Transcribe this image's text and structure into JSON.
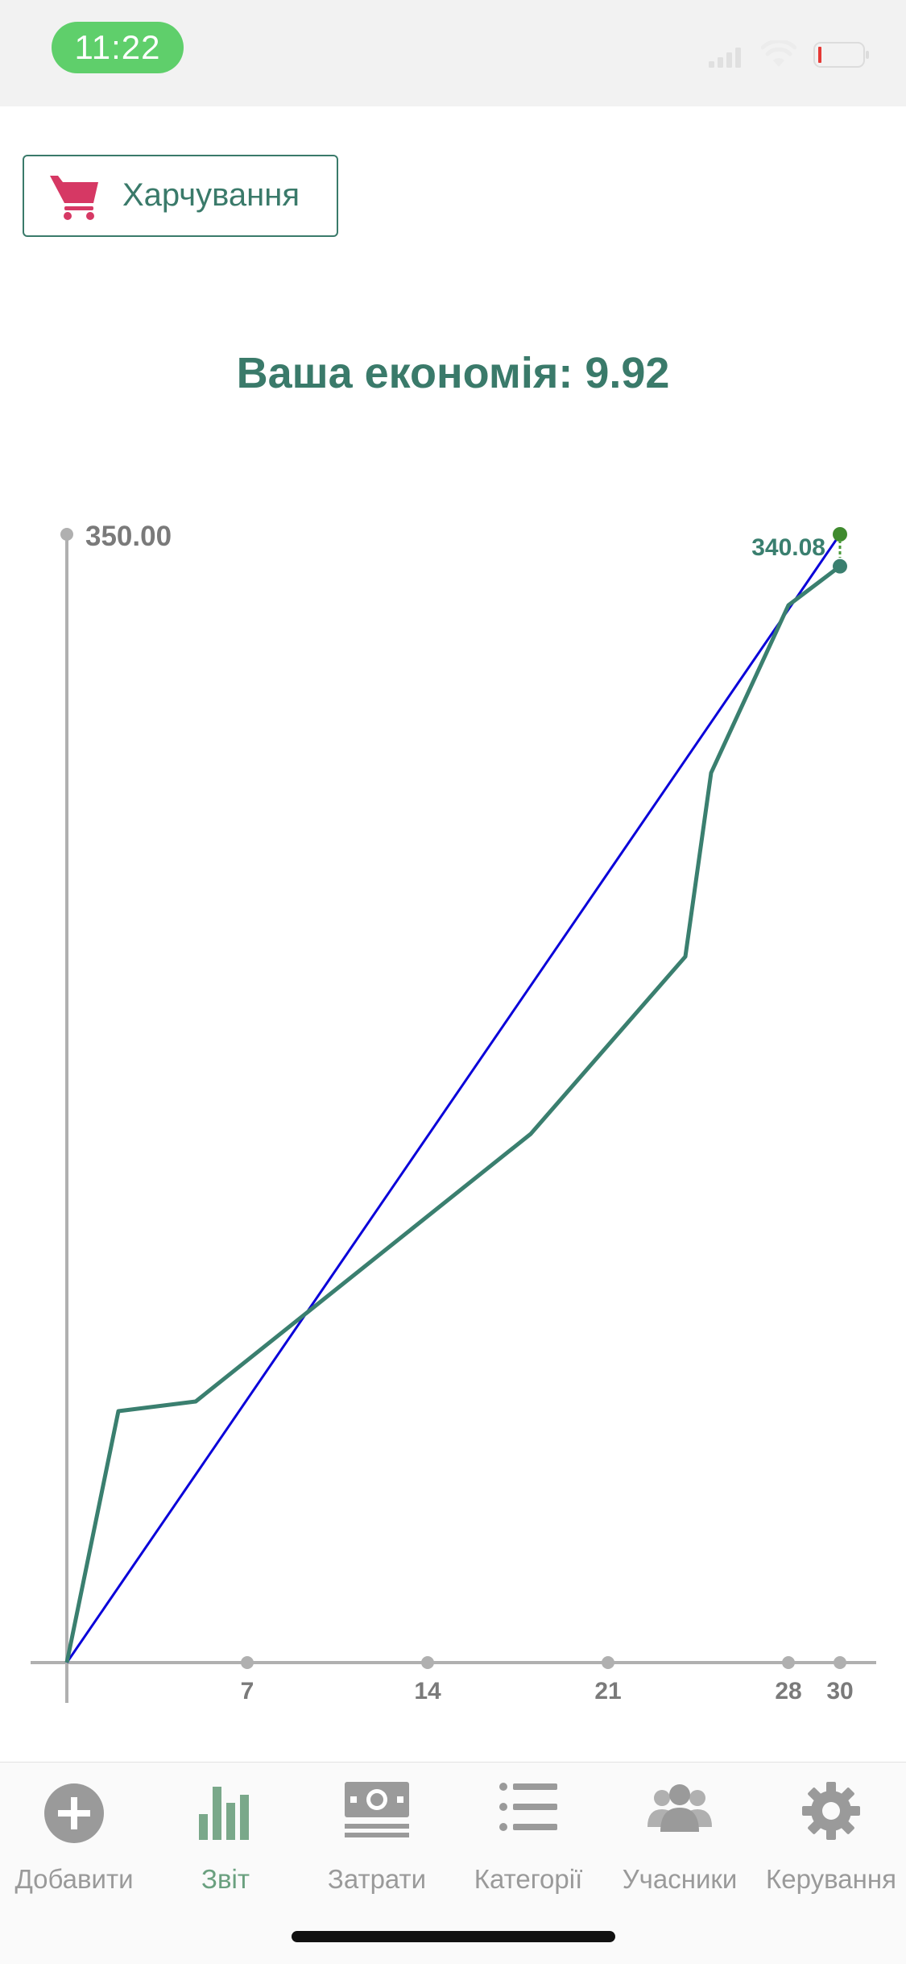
{
  "status_bar": {
    "time": "11:22",
    "battery_color": "#e53935",
    "time_pill_color": "#5fcf6b"
  },
  "category_button": {
    "label": "Харчування",
    "icon": "cart-icon",
    "icon_color": "#d63864"
  },
  "savings": {
    "text": "Ваша економія: 9.92"
  },
  "chart_data": {
    "type": "line",
    "x_ticks": [
      7,
      14,
      21,
      28,
      30
    ],
    "xlim": [
      0,
      30
    ],
    "ylim": [
      0,
      350
    ],
    "y_max_label": "350.00",
    "end_label": "340.08",
    "series": [
      {
        "color": "#0a00d9",
        "points": [
          [
            0,
            0
          ],
          [
            30,
            350
          ]
        ]
      },
      {
        "color": "#3a7f6f",
        "points": [
          [
            0,
            0
          ],
          [
            2,
            78
          ],
          [
            5,
            81
          ],
          [
            18,
            164
          ],
          [
            24,
            219
          ],
          [
            25,
            276
          ],
          [
            28,
            328
          ],
          [
            30,
            340.08
          ]
        ]
      }
    ]
  },
  "tabs": [
    {
      "label": "Добавити",
      "icon": "add-circle-icon",
      "active": false
    },
    {
      "label": "Звіт",
      "icon": "bar-chart-icon",
      "active": true
    },
    {
      "label": "Затрати",
      "icon": "money-icon",
      "active": false
    },
    {
      "label": "Категорії",
      "icon": "list-icon",
      "active": false
    },
    {
      "label": "Учасники",
      "icon": "people-icon",
      "active": false
    },
    {
      "label": "Керування",
      "icon": "gear-icon",
      "active": false
    }
  ]
}
